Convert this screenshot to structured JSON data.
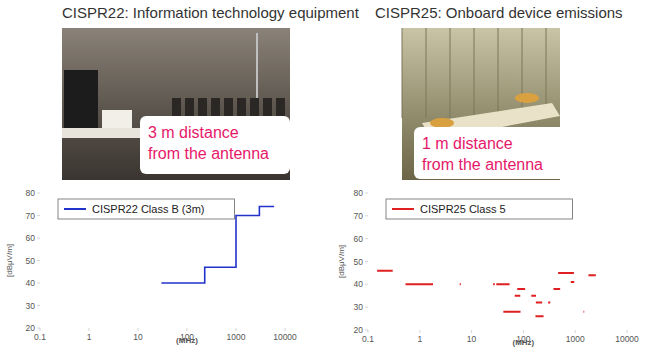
{
  "chart_data": [
    {
      "type": "line",
      "title": "CISPR22: Information technology equipment",
      "annotations": [
        "3 m distance",
        "from the antenna"
      ],
      "x_label": "(MHz)",
      "y_label": "[dBμV/m]",
      "log": "x",
      "xlim": [
        0.1,
        10000
      ],
      "xticks": [
        0.1,
        1,
        10,
        100,
        1000,
        10000
      ],
      "ylim": [
        20,
        80
      ],
      "yticks": [
        20,
        30,
        40,
        50,
        60,
        70,
        80
      ],
      "grid": false,
      "legend": "upper left",
      "x": [
        30,
        230,
        230,
        1000,
        1000,
        3000,
        3000,
        6000
      ],
      "series": [
        {
          "name": "CISPR22 Class B (3m)",
          "color": "#2233cc",
          "line_style": "solid",
          "values": [
            40,
            40,
            47,
            47,
            70,
            70,
            74,
            74
          ]
        }
      ]
    },
    {
      "type": "line",
      "title": "CISPR25: Onboard device emissions",
      "annotations": [
        "1 m distance",
        "from the antenna"
      ],
      "x_label": "(MHz)",
      "y_label": "[dBμV/m]",
      "log": "x",
      "xlim": [
        0.1,
        10000
      ],
      "xticks": [
        0.1,
        1,
        10,
        100,
        1000,
        10000
      ],
      "ylim": [
        20,
        80
      ],
      "yticks": [
        20,
        30,
        40,
        50,
        60,
        70,
        80
      ],
      "grid": false,
      "legend": "upper left",
      "x": [
        0.15,
        0.3,
        0.3,
        0.53,
        1.8,
        1.8,
        5.9,
        6.2,
        6.2,
        26,
        28,
        28,
        30,
        54,
        54,
        41,
        88,
        88,
        68,
        87,
        87,
        76,
        108,
        108,
        142,
        175,
        175,
        171,
        245,
        245,
        174,
        230,
        230,
        300,
        330,
        330,
        380,
        512,
        512,
        468,
        944,
        944,
        820,
        960,
        960,
        1447,
        1494,
        1494,
        1803,
        2500
      ],
      "series": [
        {
          "name": "CISPR25 Class 5",
          "color": "#e02020",
          "line_style": "solid",
          "values": [
            46,
            46,
            null,
            40,
            40,
            null,
            40,
            40,
            null,
            40,
            40,
            null,
            40,
            40,
            null,
            28,
            28,
            null,
            35,
            35,
            null,
            38,
            38,
            null,
            35,
            35,
            null,
            26,
            26,
            null,
            32,
            32,
            null,
            32,
            32,
            null,
            38,
            38,
            null,
            45,
            45,
            null,
            41,
            41,
            null,
            28,
            28,
            null,
            44,
            44
          ]
        }
      ]
    }
  ]
}
